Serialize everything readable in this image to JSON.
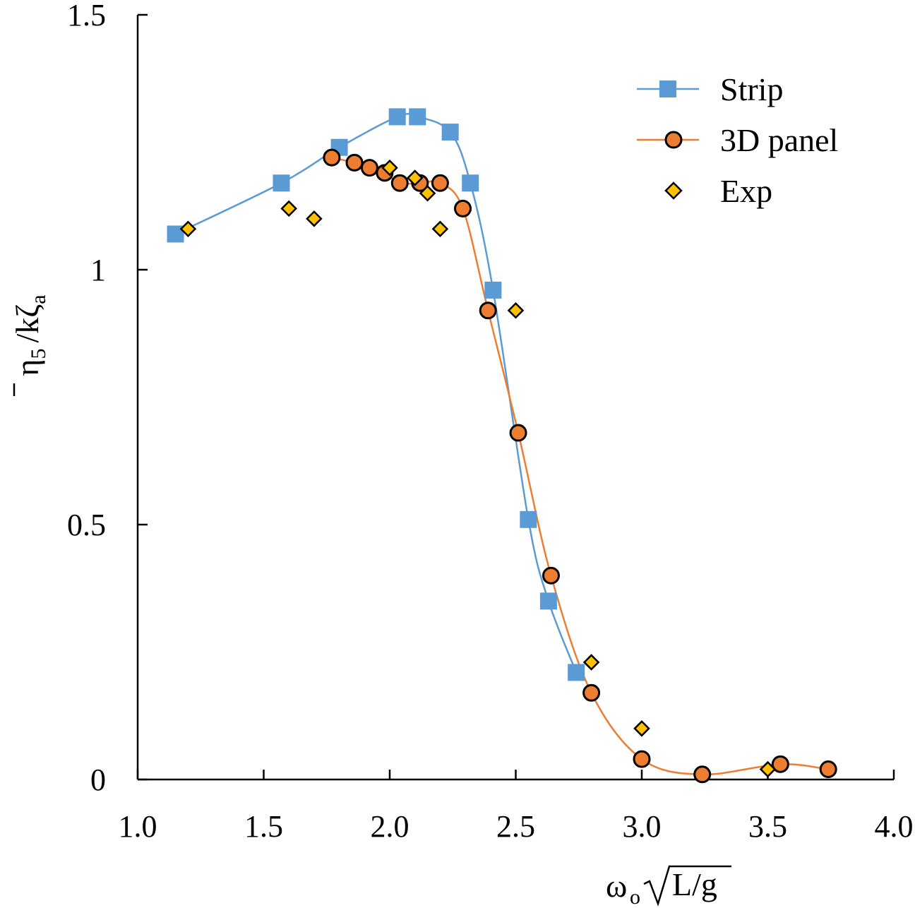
{
  "chart_data": {
    "type": "line",
    "title": "",
    "xlabel": {
      "main": "ω",
      "sub": "o",
      "radicand": "L/g"
    },
    "ylabel": {
      "eta": "η",
      "eta_sub": "5",
      "slash": "/k",
      "zeta": "ζ",
      "zeta_sub": "a"
    },
    "xlim": [
      1.0,
      4.0
    ],
    "ylim": [
      0,
      1.5
    ],
    "xticks": [
      1.0,
      1.5,
      2.0,
      2.5,
      3.0,
      3.5,
      4.0
    ],
    "xtick_labels": [
      "1.0",
      "1.5",
      "2.0",
      "2.5",
      "3.0",
      "3.5",
      "4.0"
    ],
    "yticks": [
      0,
      0.5,
      1,
      1.5
    ],
    "ytick_labels": [
      "0",
      "0.5",
      "1",
      "1.5"
    ],
    "grid": false,
    "legend_position": "top-right",
    "series": [
      {
        "name": "Strip",
        "marker": "square",
        "color": "#5B9BD5",
        "line_color": "#5B9BD5",
        "x": [
          1.15,
          1.57,
          1.8,
          2.03,
          2.11,
          2.24,
          2.32,
          2.41,
          2.55,
          2.63,
          2.74
        ],
        "y": [
          1.07,
          1.17,
          1.24,
          1.3,
          1.3,
          1.27,
          1.17,
          0.96,
          0.51,
          0.35,
          0.21
        ]
      },
      {
        "name": "3D panel",
        "marker": "circle",
        "color": "#ED7D31",
        "line_color": "#ED7D31",
        "x": [
          1.77,
          1.86,
          1.92,
          1.98,
          2.04,
          2.12,
          2.2,
          2.29,
          2.39,
          2.51,
          2.64,
          2.8,
          3.0,
          3.24,
          3.55,
          3.74
        ],
        "y": [
          1.22,
          1.21,
          1.2,
          1.19,
          1.17,
          1.17,
          1.17,
          1.12,
          0.92,
          0.68,
          0.4,
          0.17,
          0.04,
          0.01,
          0.03,
          0.02
        ]
      },
      {
        "name": "Exp",
        "marker": "diamond",
        "color": "#FFC000",
        "x": [
          1.2,
          1.6,
          1.7,
          2.0,
          2.1,
          2.15,
          2.2,
          2.5,
          2.8,
          3.0,
          3.5
        ],
        "y": [
          1.08,
          1.12,
          1.1,
          1.2,
          1.18,
          1.15,
          1.08,
          0.92,
          0.23,
          0.1,
          0.02
        ]
      }
    ]
  }
}
